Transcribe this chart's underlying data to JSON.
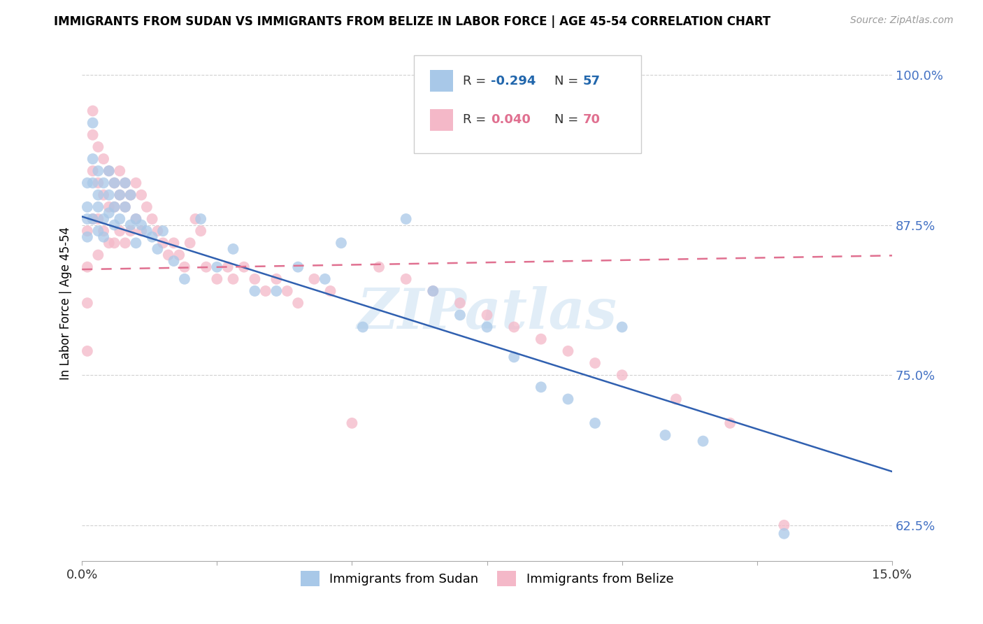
{
  "title": "IMMIGRANTS FROM SUDAN VS IMMIGRANTS FROM BELIZE IN LABOR FORCE | AGE 45-54 CORRELATION CHART",
  "source": "Source: ZipAtlas.com",
  "ylabel_label": "In Labor Force | Age 45-54",
  "xlim": [
    0.0,
    0.15
  ],
  "ylim": [
    0.595,
    1.025
  ],
  "yticks": [
    0.625,
    0.75,
    0.875,
    1.0
  ],
  "ytick_labels": [
    "62.5%",
    "75.0%",
    "87.5%",
    "100.0%"
  ],
  "xticks": [
    0.0,
    0.025,
    0.05,
    0.075,
    0.1,
    0.125,
    0.15
  ],
  "xtick_labels": [
    "0.0%",
    "",
    "",
    "",
    "",
    "",
    "15.0%"
  ],
  "sudan_color": "#a8c8e8",
  "belize_color": "#f4b8c8",
  "sudan_line_color": "#3060b0",
  "belize_line_color": "#e07090",
  "watermark": "ZIPatlas",
  "sudan_line_x0": 0.0,
  "sudan_line_y0": 0.882,
  "sudan_line_x1": 0.13,
  "sudan_line_y1": 0.698,
  "belize_line_x0": 0.0,
  "belize_line_y0": 0.838,
  "belize_line_x1": 0.13,
  "belize_line_y1": 0.848,
  "sudan_pts_x": [
    0.001,
    0.001,
    0.001,
    0.001,
    0.002,
    0.002,
    0.002,
    0.002,
    0.003,
    0.003,
    0.003,
    0.003,
    0.004,
    0.004,
    0.004,
    0.005,
    0.005,
    0.005,
    0.006,
    0.006,
    0.006,
    0.007,
    0.007,
    0.008,
    0.008,
    0.009,
    0.009,
    0.01,
    0.01,
    0.011,
    0.012,
    0.013,
    0.014,
    0.015,
    0.017,
    0.019,
    0.022,
    0.025,
    0.028,
    0.032,
    0.036,
    0.04,
    0.045,
    0.048,
    0.052,
    0.06,
    0.065,
    0.07,
    0.075,
    0.08,
    0.085,
    0.09,
    0.095,
    0.1,
    0.108,
    0.115,
    0.13
  ],
  "sudan_pts_y": [
    0.91,
    0.89,
    0.88,
    0.865,
    0.96,
    0.93,
    0.91,
    0.88,
    0.92,
    0.9,
    0.89,
    0.87,
    0.91,
    0.88,
    0.865,
    0.92,
    0.9,
    0.885,
    0.91,
    0.89,
    0.875,
    0.9,
    0.88,
    0.91,
    0.89,
    0.9,
    0.875,
    0.88,
    0.86,
    0.875,
    0.87,
    0.865,
    0.855,
    0.87,
    0.845,
    0.83,
    0.88,
    0.84,
    0.855,
    0.82,
    0.82,
    0.84,
    0.83,
    0.86,
    0.79,
    0.88,
    0.82,
    0.8,
    0.79,
    0.765,
    0.74,
    0.73,
    0.71,
    0.79,
    0.7,
    0.695,
    0.618
  ],
  "belize_pts_x": [
    0.001,
    0.001,
    0.001,
    0.001,
    0.002,
    0.002,
    0.002,
    0.002,
    0.003,
    0.003,
    0.003,
    0.003,
    0.004,
    0.004,
    0.004,
    0.005,
    0.005,
    0.005,
    0.006,
    0.006,
    0.006,
    0.007,
    0.007,
    0.007,
    0.008,
    0.008,
    0.008,
    0.009,
    0.009,
    0.01,
    0.01,
    0.011,
    0.011,
    0.012,
    0.013,
    0.014,
    0.015,
    0.016,
    0.017,
    0.018,
    0.019,
    0.02,
    0.021,
    0.022,
    0.023,
    0.025,
    0.027,
    0.028,
    0.03,
    0.032,
    0.034,
    0.036,
    0.038,
    0.04,
    0.043,
    0.046,
    0.05,
    0.055,
    0.06,
    0.065,
    0.07,
    0.075,
    0.08,
    0.085,
    0.09,
    0.095,
    0.1,
    0.11,
    0.12,
    0.13
  ],
  "belize_pts_y": [
    0.87,
    0.84,
    0.81,
    0.77,
    0.97,
    0.95,
    0.92,
    0.88,
    0.94,
    0.91,
    0.88,
    0.85,
    0.93,
    0.9,
    0.87,
    0.92,
    0.89,
    0.86,
    0.91,
    0.89,
    0.86,
    0.92,
    0.9,
    0.87,
    0.91,
    0.89,
    0.86,
    0.9,
    0.87,
    0.91,
    0.88,
    0.9,
    0.87,
    0.89,
    0.88,
    0.87,
    0.86,
    0.85,
    0.86,
    0.85,
    0.84,
    0.86,
    0.88,
    0.87,
    0.84,
    0.83,
    0.84,
    0.83,
    0.84,
    0.83,
    0.82,
    0.83,
    0.82,
    0.81,
    0.83,
    0.82,
    0.71,
    0.84,
    0.83,
    0.82,
    0.81,
    0.8,
    0.79,
    0.78,
    0.77,
    0.76,
    0.75,
    0.73,
    0.71,
    0.625
  ]
}
